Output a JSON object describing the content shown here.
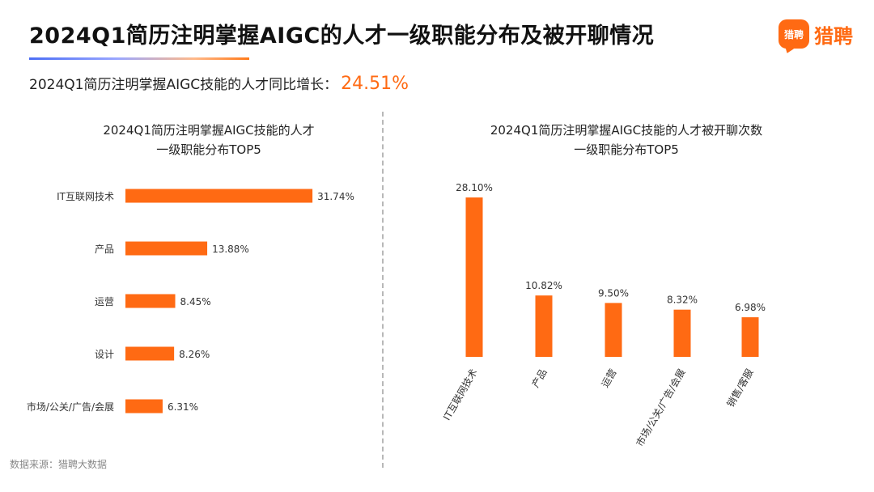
{
  "header": {
    "title": "2024Q1简历注明掌握AIGC的人才一级职能分布及被开聊情况",
    "brand_badge": "猎聘",
    "brand_name": "猎聘"
  },
  "growth": {
    "label": "2024Q1简历注明掌握AIGC技能的人才同比增长：",
    "value": "24.51%"
  },
  "footnote": "数据来源：猎聘大数据",
  "colors": {
    "accent": "#ff6a13",
    "bar": "#ff6a13"
  },
  "chart_data": [
    {
      "type": "bar",
      "orientation": "horizontal",
      "title": "2024Q1简历注明掌握AIGC技能的人才\n一级职能分布TOP5",
      "categories": [
        "IT互联网技术",
        "产品",
        "运营",
        "设计",
        "市场/公关/广告/会展"
      ],
      "values": [
        31.74,
        13.88,
        8.45,
        8.26,
        6.31
      ],
      "data_labels": [
        "31.74%",
        "13.88%",
        "8.45%",
        "8.26%",
        "6.31%"
      ],
      "xlim": [
        0,
        32
      ],
      "grid": false,
      "legend": "none"
    },
    {
      "type": "bar",
      "orientation": "vertical",
      "title": "2024Q1简历注明掌握AIGC技能的人才被开聊次数\n一级职能分布TOP5",
      "categories": [
        "IT互联网技术",
        "产品",
        "运营",
        "市场/公关/广告/会展",
        "销售/客服"
      ],
      "values": [
        28.1,
        10.82,
        9.5,
        8.32,
        6.98
      ],
      "data_labels": [
        "28.10%",
        "10.82%",
        "9.50%",
        "8.32%",
        "6.98%"
      ],
      "ylim": [
        0,
        28.1
      ],
      "grid": false,
      "legend": "none"
    }
  ]
}
